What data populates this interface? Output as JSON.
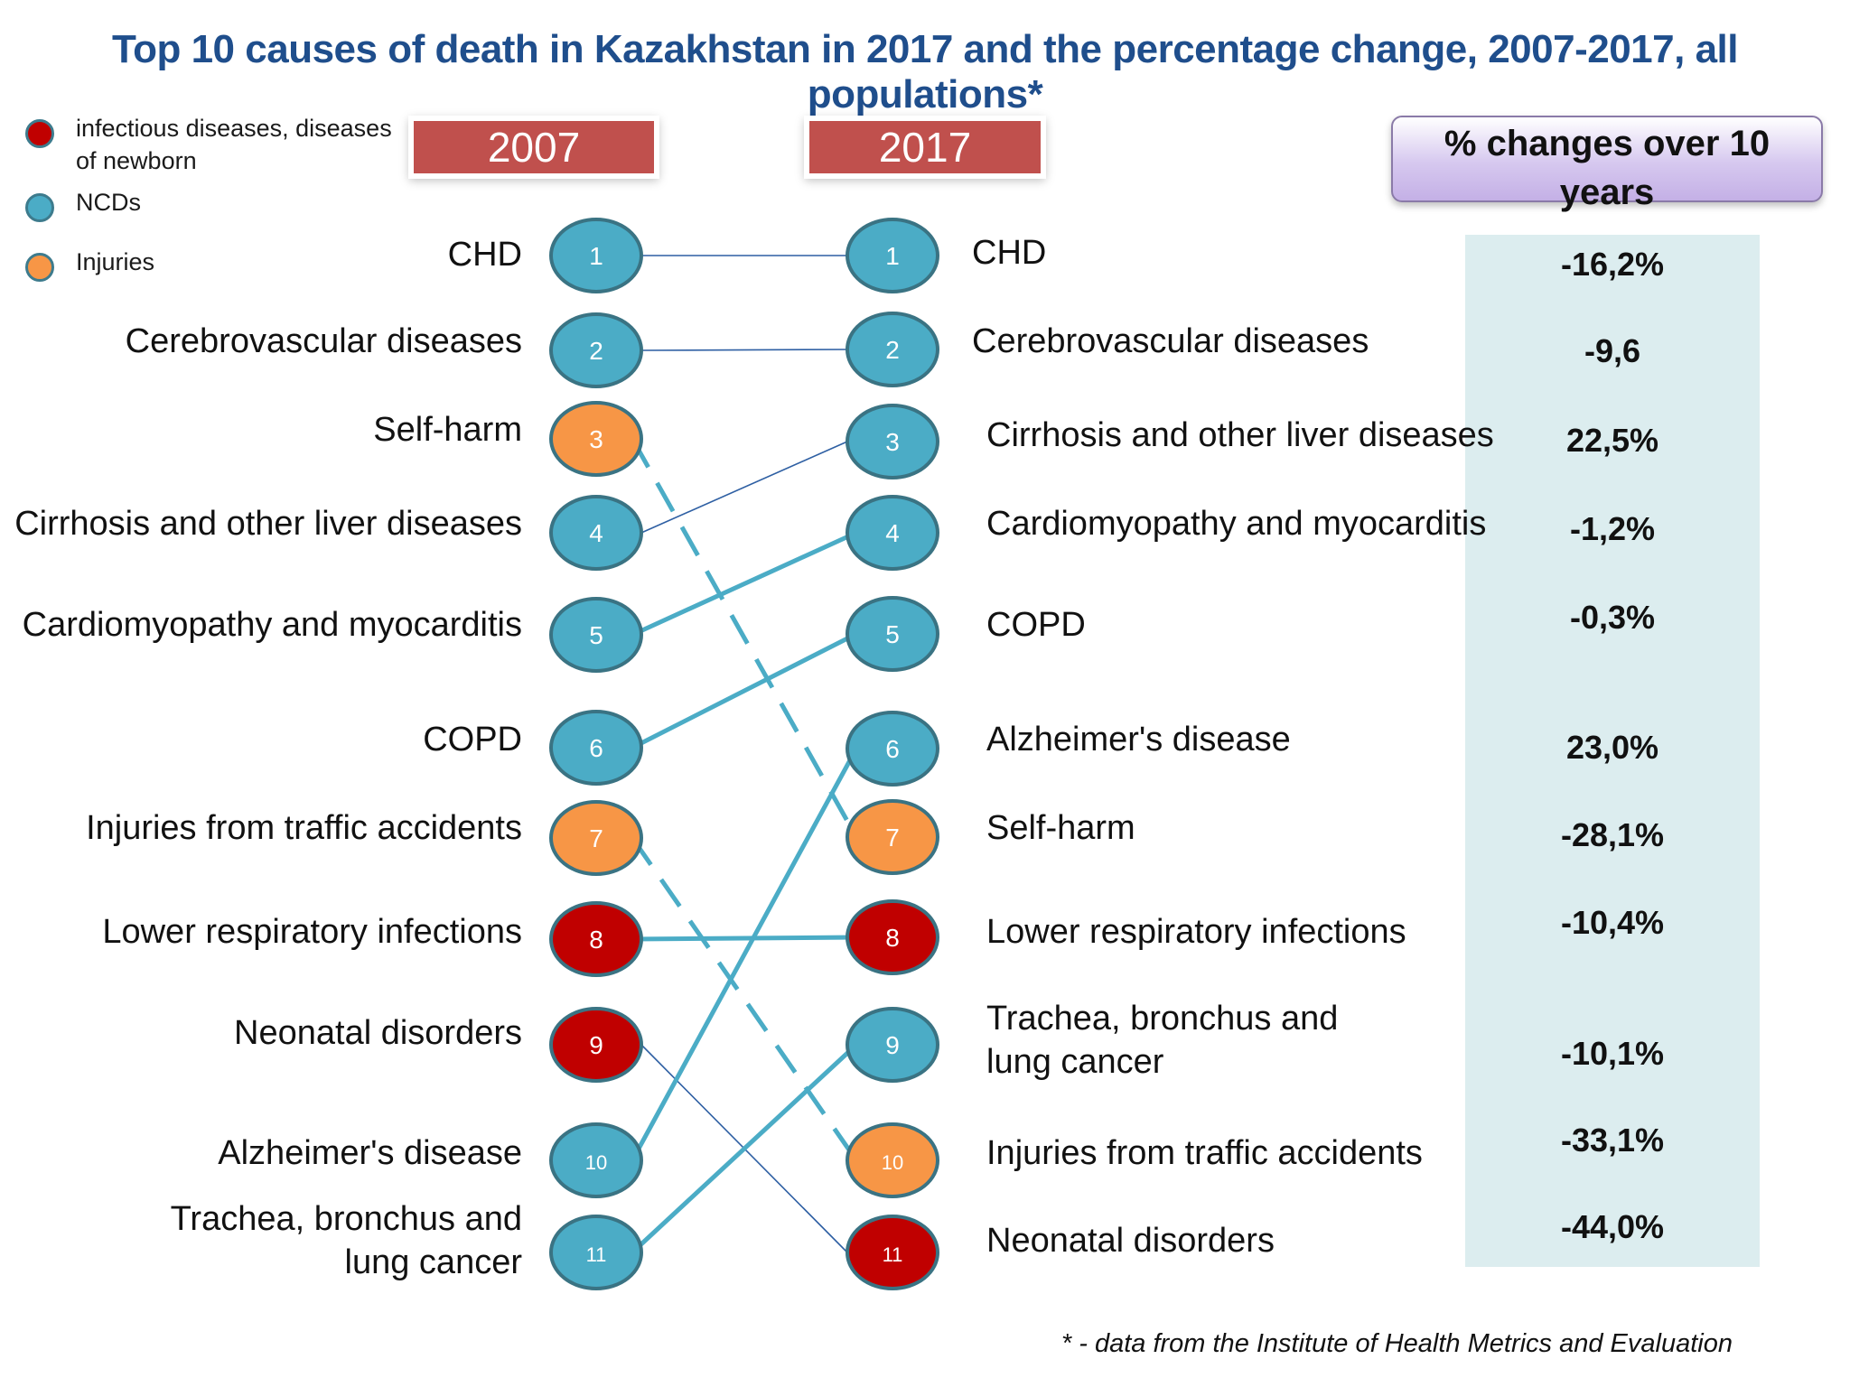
{
  "title": "Top 10 causes of death in Kazakhstan in 2017 and the percentage change, 2007-2017, all populations*",
  "legend": [
    {
      "label": "infectious diseases, diseases of newborn",
      "color": "#c00000"
    },
    {
      "label": "NCDs",
      "color": "#4bacc6"
    },
    {
      "label": "Injuries",
      "color": "#f79646"
    }
  ],
  "year_left": "2007",
  "year_right": "2017",
  "pct_header": "% changes over 10 years",
  "colors": {
    "infectious": "#c00000",
    "ncd": "#4bacc6",
    "injury": "#f79646",
    "line": "#4bacc6",
    "thin_line": "#2e5fa3"
  },
  "ranks_2007": [
    {
      "rank": "1",
      "label": "CHD",
      "category": "ncd"
    },
    {
      "rank": "2",
      "label": "Cerebrovascular diseases",
      "category": "ncd"
    },
    {
      "rank": "3",
      "label": "Self-harm",
      "category": "injury"
    },
    {
      "rank": "4",
      "label": "Cirrhosis and other liver diseases",
      "category": "ncd"
    },
    {
      "rank": "5",
      "label": "Cardiomyopathy and myocarditis",
      "category": "ncd"
    },
    {
      "rank": "6",
      "label": "COPD",
      "category": "ncd"
    },
    {
      "rank": "7",
      "label": "Injuries from traffic accidents",
      "category": "injury"
    },
    {
      "rank": "8",
      "label": "Lower respiratory infections",
      "category": "infectious"
    },
    {
      "rank": "9",
      "label": "Neonatal disorders",
      "category": "infectious"
    },
    {
      "rank": "10",
      "label": "Alzheimer's disease",
      "category": "ncd"
    },
    {
      "rank": "11",
      "label": "Trachea, bronchus and lung cancer",
      "category": "ncd"
    }
  ],
  "ranks_2017": [
    {
      "rank": "1",
      "label": "CHD",
      "category": "ncd",
      "change": "-16,2%"
    },
    {
      "rank": "2",
      "label": "Cerebrovascular diseases",
      "category": "ncd",
      "change": "-9,6"
    },
    {
      "rank": "3",
      "label": "Cirrhosis and other liver diseases",
      "category": "ncd",
      "change": "22,5%"
    },
    {
      "rank": "4",
      "label": "Cardiomyopathy and myocarditis",
      "category": "ncd",
      "change": "-1,2%"
    },
    {
      "rank": "5",
      "label": "COPD",
      "category": "ncd",
      "change": "-0,3%"
    },
    {
      "rank": "6",
      "label": "Alzheimer's disease",
      "category": "ncd",
      "change": "23,0%"
    },
    {
      "rank": "7",
      "label": "Self-harm",
      "category": "injury",
      "change": "-28,1%"
    },
    {
      "rank": "8",
      "label": "Lower respiratory infections",
      "category": "infectious",
      "change": "-10,4%"
    },
    {
      "rank": "9",
      "label": "Trachea, bronchus and lung cancer",
      "category": "ncd",
      "change": "-10,1%"
    },
    {
      "rank": "10",
      "label": "Injuries from traffic accidents",
      "category": "injury",
      "change": "-33,1%"
    },
    {
      "rank": "11",
      "label": "Neonatal disorders",
      "category": "infectious",
      "change": "-44,0%"
    }
  ],
  "links": [
    {
      "from": "1",
      "to": "1",
      "style": "thin"
    },
    {
      "from": "2",
      "to": "2",
      "style": "thin"
    },
    {
      "from": "3",
      "to": "7",
      "style": "dashed"
    },
    {
      "from": "4",
      "to": "3",
      "style": "thin"
    },
    {
      "from": "5",
      "to": "4",
      "style": "thick"
    },
    {
      "from": "6",
      "to": "5",
      "style": "thick"
    },
    {
      "from": "7",
      "to": "10",
      "style": "dashed"
    },
    {
      "from": "8",
      "to": "8",
      "style": "thick"
    },
    {
      "from": "9",
      "to": "11",
      "style": "thin"
    },
    {
      "from": "10",
      "to": "6",
      "style": "thick"
    },
    {
      "from": "11",
      "to": "9",
      "style": "thick"
    }
  ],
  "footnote": "* - data from the Institute of Health Metrics and Evaluation"
}
